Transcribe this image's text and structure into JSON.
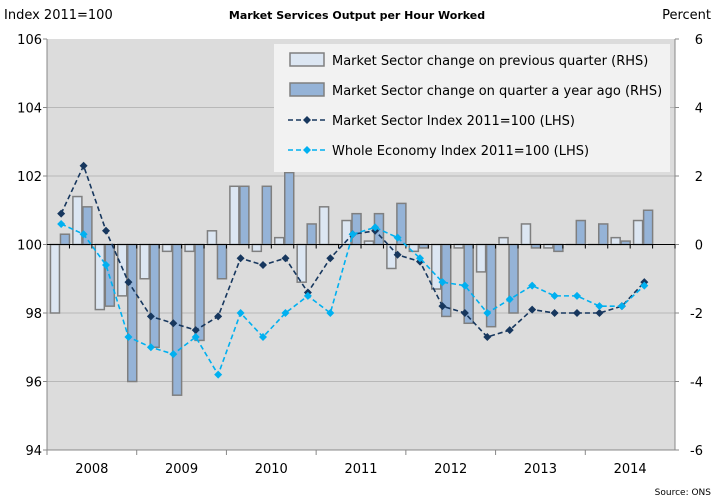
{
  "chart_data": {
    "type": "bar+line",
    "title": "Market Services Output per Hour Worked",
    "ylabel_left": "Index 2011=100",
    "ylabel_right": "Percent",
    "source": "Source: ONS",
    "ylim_left": [
      94,
      106
    ],
    "ylim_right": [
      -6,
      6
    ],
    "yticks_left": [
      94,
      96,
      98,
      100,
      102,
      104,
      106
    ],
    "yticks_right": [
      -6,
      -4,
      -2,
      0,
      2,
      4,
      6
    ],
    "x_years": [
      "2008",
      "2009",
      "2010",
      "2011",
      "2012",
      "2013",
      "2014"
    ],
    "x_quarters": [
      "2008Q1",
      "2008Q2",
      "2008Q3",
      "2008Q4",
      "2009Q1",
      "2009Q2",
      "2009Q3",
      "2009Q4",
      "2010Q1",
      "2010Q2",
      "2010Q3",
      "2010Q4",
      "2011Q1",
      "2011Q2",
      "2011Q3",
      "2011Q4",
      "2012Q1",
      "2012Q2",
      "2012Q3",
      "2012Q4",
      "2013Q1",
      "2013Q2",
      "2013Q3",
      "2013Q4",
      "2014Q1",
      "2014Q2",
      "2014Q3"
    ],
    "grid": true,
    "legend_position": "top-right",
    "series": [
      {
        "name": "Market Sector change on previous quarter (RHS)",
        "type": "bar",
        "axis": "right",
        "color": "#dce6f2",
        "values": [
          -2.0,
          1.4,
          -1.9,
          -1.5,
          -1.0,
          -0.2,
          -0.2,
          0.4,
          1.7,
          -0.2,
          0.2,
          -1.1,
          1.1,
          0.7,
          0.1,
          -0.7,
          -0.2,
          -1.3,
          -0.1,
          -0.8,
          0.2,
          0.6,
          -0.1,
          0.0,
          0.0,
          0.2,
          0.7
        ]
      },
      {
        "name": "Market Sector change on quarter a year ago (RHS)",
        "type": "bar",
        "axis": "right",
        "color": "#95b3d7",
        "values": [
          0.3,
          1.1,
          -1.8,
          -4.0,
          -3.0,
          -4.4,
          -2.8,
          -1.0,
          1.7,
          1.7,
          2.1,
          0.6,
          0.0,
          0.9,
          0.9,
          1.2,
          -0.1,
          -2.1,
          -2.3,
          -2.4,
          -2.0,
          -0.1,
          -0.2,
          0.7,
          0.6,
          0.1,
          1.0
        ]
      },
      {
        "name": "Market Sector Index  2011=100 (LHS)",
        "type": "line",
        "axis": "left",
        "color": "#17375e",
        "values": [
          100.9,
          102.3,
          100.4,
          98.9,
          97.9,
          97.7,
          97.5,
          97.9,
          99.6,
          99.4,
          99.6,
          98.6,
          99.6,
          100.3,
          100.4,
          99.7,
          99.5,
          98.2,
          98.0,
          97.3,
          97.5,
          98.1,
          98.0,
          98.0,
          98.0,
          98.2,
          98.9
        ]
      },
      {
        "name": "Whole Economy Index 2011=100 (LHS)",
        "type": "line",
        "axis": "left",
        "color": "#00b0f0",
        "values": [
          100.6,
          100.3,
          99.4,
          97.3,
          97.0,
          96.8,
          97.3,
          96.2,
          98.0,
          97.3,
          98.0,
          98.5,
          98.0,
          100.3,
          100.5,
          100.2,
          99.6,
          98.9,
          98.8,
          98.0,
          98.4,
          98.8,
          98.5,
          98.5,
          98.2,
          98.2,
          98.8
        ]
      }
    ]
  }
}
